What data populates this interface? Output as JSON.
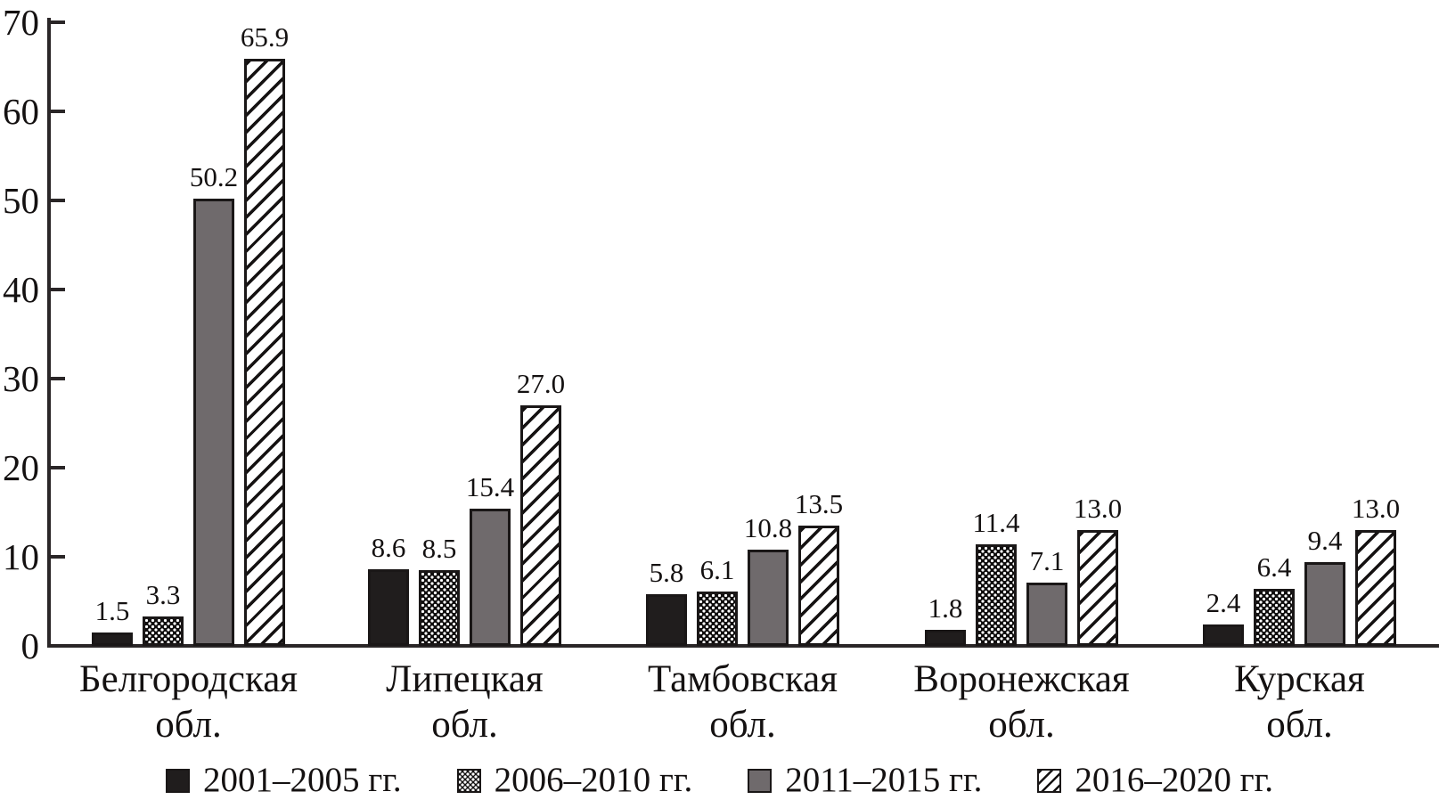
{
  "chart_data": {
    "type": "bar",
    "title": "",
    "xlabel": "",
    "ylabel": "",
    "grid": false,
    "legend_position": "bottom",
    "categories": [
      {
        "line1": "Белгородская",
        "line2": "обл."
      },
      {
        "line1": "Липецкая",
        "line2": "обл."
      },
      {
        "line1": "Тамбовская",
        "line2": "обл."
      },
      {
        "line1": "Воронежская",
        "line2": "обл."
      },
      {
        "line1": "Курская",
        "line2": "обл."
      }
    ],
    "series": [
      {
        "name": "2001–2005 гг.",
        "pattern": "solid-black",
        "values": [
          1.5,
          8.6,
          5.8,
          1.8,
          2.4
        ]
      },
      {
        "name": "2006–2010 гг.",
        "pattern": "dotted",
        "values": [
          3.3,
          8.5,
          6.1,
          11.4,
          6.4
        ]
      },
      {
        "name": "2011–2015 гг.",
        "pattern": "solid-gray",
        "values": [
          50.2,
          15.4,
          10.8,
          7.1,
          9.4
        ]
      },
      {
        "name": "2016–2020 гг.",
        "pattern": "diagonal-hatch",
        "values": [
          65.9,
          27.0,
          13.5,
          13.0,
          13.0
        ]
      }
    ],
    "y_axis": {
      "min": 0,
      "max": 70,
      "tick_step": 10,
      "ticks": [
        0,
        10,
        20,
        30,
        40,
        50,
        60,
        70
      ]
    },
    "value_label_decimals": 1,
    "colors": {
      "text": "#141111",
      "axis": "#2a2627",
      "bar_outline": "#1a1717",
      "solid_black": "#201d1d",
      "solid_gray": "#6f6a6c",
      "hatch_ink": "#151212",
      "background": "#ffffff"
    }
  }
}
